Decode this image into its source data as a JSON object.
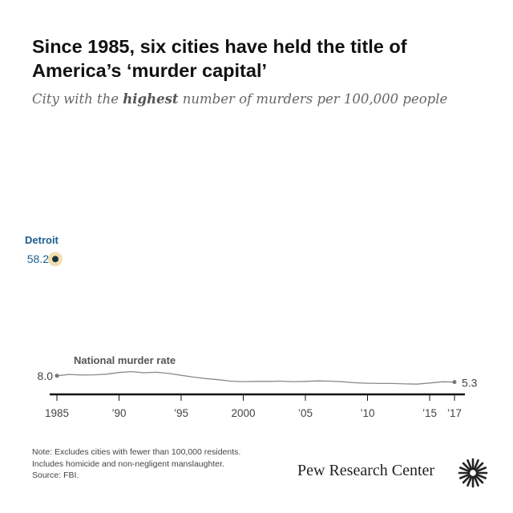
{
  "header": {
    "title": "Since 1985, six cities have held the title of America’s ‘murder capital’",
    "subtitle_pre": "City with the ",
    "subtitle_bold": "highest",
    "subtitle_post": " number of murders per 100,000 people"
  },
  "chart_data": {
    "type": "line",
    "title": "Since 1985, six cities have held the title of America’s ‘murder capital’",
    "subtitle": "City with the highest number of murders per 100,000 people",
    "xlim": [
      1985,
      2017
    ],
    "ylim": [
      0,
      60
    ],
    "x_ticks": [
      {
        "year": 1985,
        "label": "1985"
      },
      {
        "year": 1990,
        "label": "’90"
      },
      {
        "year": 1995,
        "label": "’95"
      },
      {
        "year": 2000,
        "label": "2000"
      },
      {
        "year": 2005,
        "label": "’05"
      },
      {
        "year": 2010,
        "label": "’10"
      },
      {
        "year": 2015,
        "label": "’15"
      },
      {
        "year": 2017,
        "label": "’17"
      }
    ],
    "highlight_point": {
      "city": "Detroit",
      "year": 1985,
      "value": 58.2,
      "value_label": "58.2",
      "color": "#1a5d8f"
    },
    "series": [
      {
        "name": "National murder rate",
        "color": "#8a8a8a",
        "start_label": "8.0",
        "end_label": "5.3",
        "points": [
          {
            "x": 1985,
            "y": 8.0
          },
          {
            "x": 1986,
            "y": 8.6
          },
          {
            "x": 1987,
            "y": 8.3
          },
          {
            "x": 1988,
            "y": 8.4
          },
          {
            "x": 1989,
            "y": 8.7
          },
          {
            "x": 1990,
            "y": 9.4
          },
          {
            "x": 1991,
            "y": 9.8
          },
          {
            "x": 1992,
            "y": 9.3
          },
          {
            "x": 1993,
            "y": 9.5
          },
          {
            "x": 1994,
            "y": 9.0
          },
          {
            "x": 1995,
            "y": 8.2
          },
          {
            "x": 1996,
            "y": 7.4
          },
          {
            "x": 1997,
            "y": 6.8
          },
          {
            "x": 1998,
            "y": 6.3
          },
          {
            "x": 1999,
            "y": 5.7
          },
          {
            "x": 2000,
            "y": 5.5
          },
          {
            "x": 2001,
            "y": 5.6
          },
          {
            "x": 2002,
            "y": 5.6
          },
          {
            "x": 2003,
            "y": 5.7
          },
          {
            "x": 2004,
            "y": 5.5
          },
          {
            "x": 2005,
            "y": 5.6
          },
          {
            "x": 2006,
            "y": 5.8
          },
          {
            "x": 2007,
            "y": 5.7
          },
          {
            "x": 2008,
            "y": 5.4
          },
          {
            "x": 2009,
            "y": 5.0
          },
          {
            "x": 2010,
            "y": 4.8
          },
          {
            "x": 2011,
            "y": 4.7
          },
          {
            "x": 2012,
            "y": 4.7
          },
          {
            "x": 2013,
            "y": 4.5
          },
          {
            "x": 2014,
            "y": 4.4
          },
          {
            "x": 2015,
            "y": 4.9
          },
          {
            "x": 2016,
            "y": 5.4
          },
          {
            "x": 2017,
            "y": 5.3
          }
        ]
      }
    ],
    "grid": false
  },
  "footer": {
    "notes": [
      "Note: Excludes cities with fewer than 100,000 residents.",
      "Includes homicide and non-negligent manslaughter.",
      "Source: FBI."
    ],
    "brand": "Pew Research Center",
    "logo_icon": "pew-sunburst-icon"
  }
}
